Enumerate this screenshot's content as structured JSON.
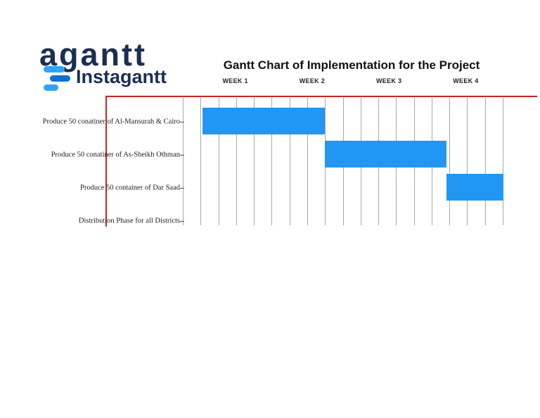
{
  "logo": {
    "primary_text": "agantt",
    "secondary_text": "Instagantt"
  },
  "header": {
    "title": "Gantt Chart of Implementation for the Project"
  },
  "chart_data": {
    "type": "bar",
    "variant": "gantt",
    "title": "Gantt Chart of Implementation for the Project",
    "x_axis": {
      "tick_labels": [
        "WEEK 1",
        "WEEK 2",
        "WEEK 3",
        "WEEK 4"
      ],
      "range_weeks": [
        0,
        4
      ]
    },
    "grid": true,
    "gridline_count": 19,
    "legend": "none",
    "bar_color": "#2196f3",
    "tasks": [
      {
        "label": "Produce 50 conatiner of Al-Mansurah & Cairo",
        "start_week": 0.24,
        "end_week": 1.77,
        "start_pct": 6.1,
        "end_pct": 44.3,
        "bar_visible": true
      },
      {
        "label": "Produce 50 conatiner of As-Sheikh Othman",
        "start_week": 1.77,
        "end_week": 3.29,
        "start_pct": 44.3,
        "end_pct": 82.2,
        "bar_visible": true
      },
      {
        "label": "Produce 50 container of Dar Saad",
        "start_week": 3.29,
        "end_week": 4.0,
        "start_pct": 82.2,
        "end_pct": 100,
        "bar_visible": true
      },
      {
        "label": "Distribution Phase for all Districts",
        "start_week": null,
        "end_week": null,
        "start_pct": null,
        "end_pct": null,
        "bar_visible": false
      }
    ]
  },
  "colors": {
    "bar_blue": "#2196f3",
    "red_line": "#cc2420",
    "grid_gray": "#a8a8a8",
    "navy": "#1c2f52",
    "logo_blue": "#2fa3f7",
    "logo_blue_dark": "#0f6fd7",
    "text_dark": "#111111"
  }
}
